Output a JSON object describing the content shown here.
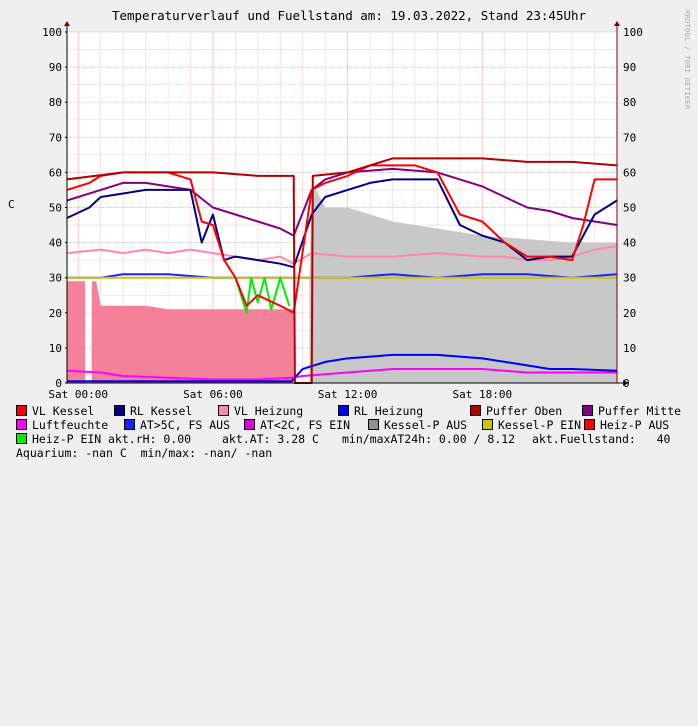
{
  "title": "Temperaturverlauf und Fuellstand am: 19.03.2022, Stand 23:45Uhr",
  "watermark": "RRDTOOL / TOBI OETIKER",
  "chart_data": {
    "type": "line",
    "ylabel": "C",
    "ylim": [
      0,
      100
    ],
    "y_ticks": [
      "0",
      "10",
      "20",
      "30",
      "40",
      "50",
      "60",
      "70",
      "80",
      "90",
      "100"
    ],
    "x_ticks": [
      "Sat 00:00",
      "Sat 06:00",
      "Sat 12:00",
      "Sat 18:00"
    ],
    "x_range_hours": [
      -0.5,
      24
    ],
    "grid": true,
    "series": [
      {
        "name": "Kessel-P AUS",
        "color": "#c8c8c8",
        "kind": "area",
        "x": [
          10.3,
          10.4,
          10.6,
          11,
          12,
          13,
          14,
          16,
          18,
          20,
          22,
          24
        ],
        "y": [
          30,
          55,
          55,
          50,
          50,
          48,
          46,
          44,
          42,
          41,
          40,
          40
        ]
      },
      {
        "name": "Heiz-P AUS",
        "color": "#f5809a",
        "kind": "area",
        "x": [
          -0.5,
          0.3,
          0.31,
          0.6,
          0.61,
          0.8,
          1,
          2,
          3,
          4,
          5,
          6,
          7,
          8,
          9,
          9.6
        ],
        "y": [
          29,
          29,
          0,
          0,
          29,
          29,
          22,
          22,
          22,
          21,
          21,
          21,
          21,
          21,
          21,
          21
        ]
      },
      {
        "name": "Luftfeuchte",
        "color": "#ff00ff",
        "x": [
          -0.5,
          1,
          2,
          4,
          6,
          8,
          9.5,
          10,
          12,
          14,
          16,
          18,
          20,
          22,
          24
        ],
        "y": [
          3.5,
          3,
          2,
          1.5,
          1,
          1,
          1.5,
          2,
          3,
          4,
          4,
          4,
          3,
          3,
          3
        ]
      },
      {
        "name": "RL Heizung",
        "color": "#0000ff",
        "x": [
          -0.5,
          2,
          4,
          6,
          8,
          9.5,
          10,
          11,
          12,
          14,
          16,
          18,
          19,
          20,
          21,
          22,
          24
        ],
        "y": [
          0.5,
          0.5,
          0.5,
          0.5,
          0.5,
          0.5,
          4,
          6,
          7,
          8,
          8,
          7,
          6,
          5,
          4,
          4,
          3.5
        ]
      },
      {
        "name": "AT>5C, FS AUS",
        "color": "#2020ff",
        "x": [
          -0.5,
          1,
          2,
          4,
          6,
          8,
          9.6,
          10.4,
          12,
          14,
          16,
          18,
          20,
          22,
          24
        ],
        "y": [
          30,
          30,
          31,
          31,
          30,
          30,
          30,
          30,
          30,
          31,
          30,
          31,
          31,
          30,
          31
        ]
      },
      {
        "name": "Kessel-P EIN",
        "color": "#c8c800",
        "x": [
          -0.5,
          24
        ],
        "y": [
          30,
          30
        ]
      },
      {
        "name": "Heiz-P EIN",
        "color": "#00ee00",
        "x": [
          7,
          7.5,
          7.7,
          8,
          8.3,
          8.6,
          9,
          9.4
        ],
        "y": [
          30,
          20,
          30,
          23,
          30,
          21,
          30,
          22
        ]
      },
      {
        "name": "VL Heizung",
        "color": "#ff88aa",
        "x": [
          -0.5,
          1,
          2,
          3,
          4,
          5,
          6,
          7,
          8,
          9,
          9.6,
          10.4,
          12,
          14,
          16,
          18,
          19,
          20,
          21,
          22,
          23,
          24
        ],
        "y": [
          37,
          38,
          37,
          38,
          37,
          38,
          37,
          36,
          35,
          36,
          34,
          37,
          36,
          36,
          37,
          36,
          36,
          35,
          35,
          36,
          38,
          39
        ]
      },
      {
        "name": "Puffer Mitte",
        "color": "#800080",
        "x": [
          -0.5,
          1,
          2,
          3,
          4,
          5,
          6,
          7,
          8,
          9,
          9.6,
          10.4,
          11,
          12,
          14,
          16,
          18,
          19,
          20,
          21,
          22,
          23,
          24
        ],
        "y": [
          52,
          55,
          57,
          57,
          56,
          55,
          50,
          48,
          46,
          44,
          42,
          55,
          58,
          60,
          61,
          60,
          56,
          53,
          50,
          49,
          47,
          46,
          45
        ]
      },
      {
        "name": "RL Kessel",
        "color": "#000080",
        "x": [
          -0.5,
          0.5,
          1,
          2,
          3,
          4,
          5,
          5.5,
          6,
          6.5,
          7,
          8,
          9,
          9.6,
          10.4,
          11,
          12,
          13,
          14,
          15,
          16,
          17,
          18,
          19,
          20,
          21,
          22,
          22.5,
          23,
          24
        ],
        "y": [
          47,
          50,
          53,
          54,
          55,
          55,
          55,
          40,
          48,
          35,
          36,
          35,
          34,
          33,
          48,
          53,
          55,
          57,
          58,
          58,
          58,
          45,
          42,
          40,
          35,
          36,
          36,
          42,
          48,
          52
        ]
      },
      {
        "name": "VL Kessel",
        "color": "#ff0000",
        "x": [
          -0.5,
          0.5,
          1,
          2,
          3,
          4,
          5,
          5.5,
          6,
          6.5,
          7,
          7.5,
          8,
          9,
          9.6,
          10.4,
          11,
          12,
          13,
          14,
          15,
          16,
          17,
          18,
          19,
          20,
          21,
          22,
          22.5,
          23,
          24
        ],
        "y": [
          55,
          57,
          59,
          60,
          60,
          60,
          58,
          46,
          45,
          35,
          30,
          22,
          25,
          22,
          20,
          55,
          57,
          59,
          62,
          62,
          62,
          60,
          48,
          46,
          40,
          36,
          36,
          35,
          45,
          58,
          58
        ]
      },
      {
        "name": "Puffer Oben",
        "color": "#b00000",
        "x": [
          -0.5,
          2,
          4,
          6,
          8,
          9.6,
          9.65,
          10,
          10.4,
          10.45,
          12,
          14,
          16,
          18,
          20,
          22,
          24
        ],
        "y": [
          58,
          60,
          60,
          60,
          59,
          59,
          0,
          0,
          0,
          59,
          60,
          64,
          64,
          64,
          63,
          63,
          62
        ]
      }
    ]
  },
  "legend": [
    {
      "label": "VL Kessel",
      "color": "#ff0000"
    },
    {
      "label": "RL Kessel",
      "color": "#000080"
    },
    {
      "label": "VL Heizung",
      "color": "#ff88aa"
    },
    {
      "label": "RL Heizung",
      "color": "#0000ff"
    },
    {
      "label": "Puffer Oben",
      "color": "#b00000"
    },
    {
      "label": "Puffer Mitte",
      "color": "#800080"
    },
    {
      "label": "Luftfeuchte",
      "color": "#ff00ff"
    },
    {
      "label": "AT>5C, FS AUS",
      "color": "#2020ff"
    },
    {
      "label": "AT<2C, FS EIN",
      "color": "#dd00dd"
    },
    {
      "label": "Kessel-P AUS",
      "color": "#909090"
    },
    {
      "label": "Kessel-P EIN",
      "color": "#c8c800"
    },
    {
      "label": "Heiz-P AUS",
      "color": "#ff0000"
    },
    {
      "label": "Heiz-P EIN",
      "color": "#00ee00"
    }
  ],
  "stats": {
    "rh": "akt.rH: 0.00",
    "at": "akt.AT: 3.28 C",
    "minmax": "min/maxAT24h: 0.00 / 8.12",
    "fuellstand": "akt.Fuellstand:   40",
    "aquarium": "Aquarium: -nan C  min/max: -nan/ -nan"
  }
}
